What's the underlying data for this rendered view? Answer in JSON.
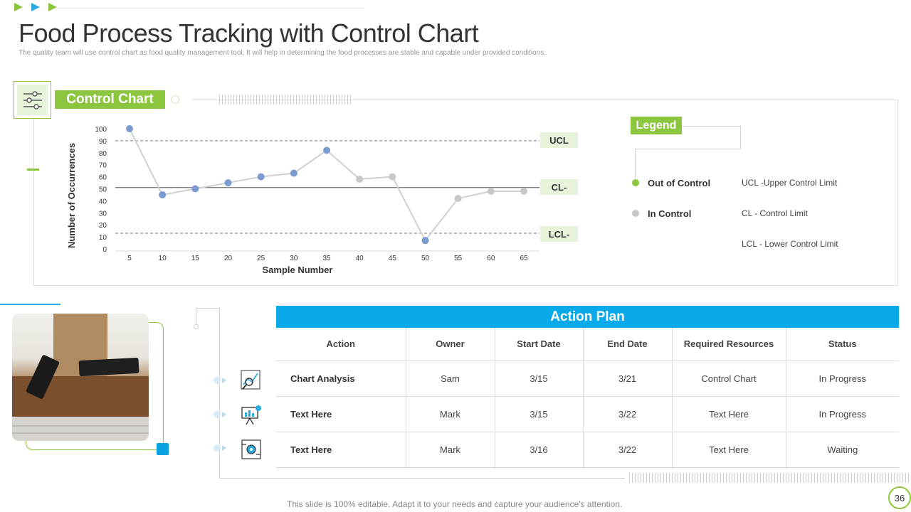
{
  "title": "Food Process Tracking with Control Chart",
  "subtitle": "The quality team will use control chart as food quality management tool. It will help in determining the food processes are stable and capable under provided conditions.",
  "control_chart_label": "Control Chart",
  "legend": {
    "title": "Legend",
    "items": [
      {
        "label": "Out of Control",
        "color": "#8cc63f"
      },
      {
        "label": "In Control",
        "color": "#c8c8c8"
      }
    ],
    "definitions": [
      "UCL -Upper Control Limit",
      "CL - Control Limit",
      "LCL - Lower Control Limit"
    ]
  },
  "limit_labels": {
    "ucl": "UCL",
    "cl": "CL-",
    "lcl": "LCL-"
  },
  "chart_data": {
    "type": "line",
    "xlabel": "Sample Number",
    "ylabel": "Number of Occurrences",
    "x": [
      5,
      10,
      15,
      20,
      25,
      30,
      35,
      40,
      45,
      50,
      55,
      60,
      65
    ],
    "series": [
      {
        "values": [
          100,
          45,
          50,
          55,
          60,
          63,
          82,
          58,
          60,
          7,
          42,
          48,
          48
        ]
      }
    ],
    "point_colors": [
      "#7b9bd0",
      "#7b9bd0",
      "#7b9bd0",
      "#7b9bd0",
      "#7b9bd0",
      "#7b9bd0",
      "#7b9bd0",
      "#c8c8c8",
      "#c8c8c8",
      "#7b9bd0",
      "#c8c8c8",
      "#c8c8c8",
      "#c8c8c8"
    ],
    "ylim": [
      0,
      100
    ],
    "yticks": [
      0,
      10,
      20,
      30,
      40,
      50,
      60,
      70,
      80,
      90,
      100
    ],
    "limits": {
      "ucl": 90,
      "cl": 51,
      "lcl": 13
    },
    "grid": false
  },
  "action_plan": {
    "title": "Action Plan",
    "columns": [
      "Action",
      "Owner",
      "Start Date",
      "End Date",
      "Required Resources",
      "Status"
    ],
    "rows": [
      {
        "icon": "chart-analysis-icon",
        "cells": [
          "Chart Analysis",
          "Sam",
          "3/15",
          "3/21",
          "Control Chart",
          "In Progress"
        ]
      },
      {
        "icon": "presentation-board-icon",
        "cells": [
          "Text Here",
          "Mark",
          "3/15",
          "3/22",
          "Text Here",
          "In Progress"
        ]
      },
      {
        "icon": "process-settings-icon",
        "cells": [
          "Text Here",
          "Mark",
          "3/16",
          "3/22",
          "Text Here",
          "Waiting"
        ]
      }
    ]
  },
  "footer": "This slide is 100% editable. Adapt it to your needs and capture your audience's attention.",
  "page_number": "36"
}
